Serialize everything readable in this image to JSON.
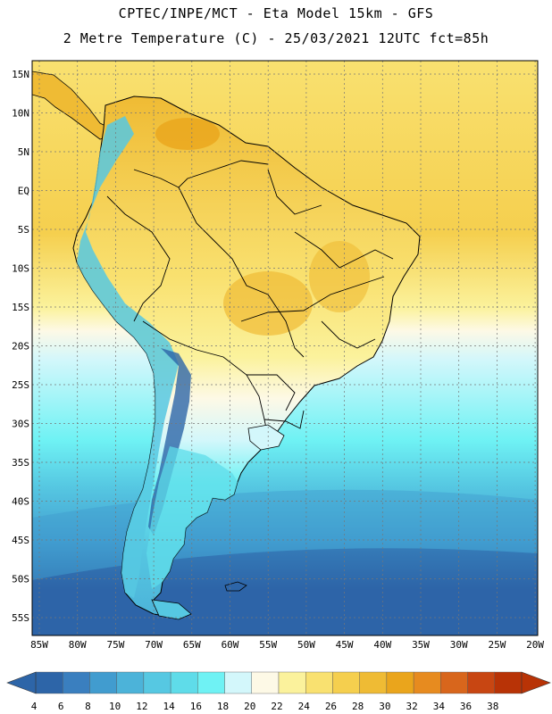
{
  "header": {
    "line1": "CPTEC/INPE/MCT -  Eta Model 15km - GFS",
    "line2": "2 Metre Temperature (C) - 25/03/2021 12UTC fct=85h"
  },
  "map": {
    "lat_labels": [
      "15N",
      "10N",
      "5N",
      "EQ",
      "5S",
      "10S",
      "15S",
      "20S",
      "25S",
      "30S",
      "35S",
      "40S",
      "45S",
      "50S",
      "55S"
    ],
    "lon_labels": [
      "85W",
      "80W",
      "75W",
      "70W",
      "65W",
      "60W",
      "55W",
      "50W",
      "45W",
      "40W",
      "35W",
      "30W",
      "25W",
      "20W"
    ]
  },
  "colorbar": {
    "labels": [
      "4",
      "6",
      "8",
      "10",
      "12",
      "14",
      "16",
      "18",
      "20",
      "22",
      "24",
      "26",
      "28",
      "30",
      "32",
      "34",
      "36",
      "38"
    ],
    "colors": [
      "#2d65a8",
      "#3a7fbf",
      "#419ccf",
      "#4cb3d9",
      "#56c8e2",
      "#5fdce9",
      "#6ff2f4",
      "#d3f7fb",
      "#fdf9e6",
      "#fbf29c",
      "#f9e170",
      "#f5cf4e",
      "#efbb34",
      "#eaa51c",
      "#e78b1f",
      "#d8661c",
      "#c84612",
      "#b83306"
    ]
  }
}
